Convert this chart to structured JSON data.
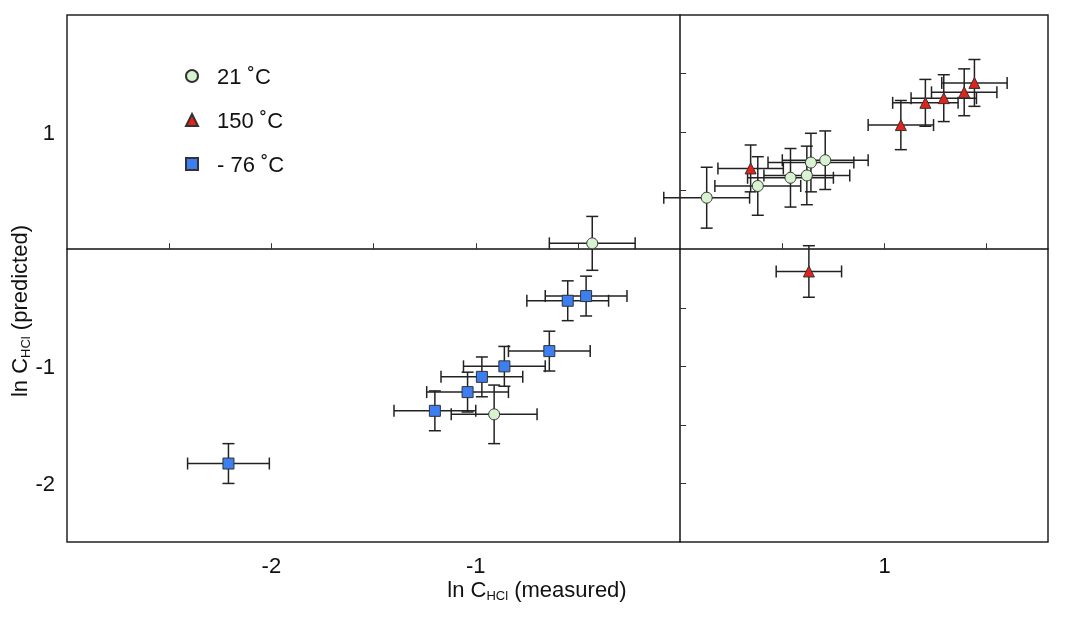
{
  "chart_data": {
    "type": "scatter",
    "xlabel": "ln C$_{HCl}$ (measured)",
    "ylabel": "ln C$_{HCl}$ (predicted)",
    "xlim": [
      -3,
      1.8
    ],
    "ylim": [
      -2.5,
      2
    ],
    "xticks": [
      {
        "value": -2.5,
        "label": null
      },
      -2,
      {
        "value": -1.5,
        "label": null
      },
      -1,
      {
        "value": -0.5,
        "label": null
      },
      {
        "value": 0.5,
        "label": null
      },
      1,
      {
        "value": 1.5,
        "label": null
      }
    ],
    "yticks": [
      -2,
      {
        "value": -1.5,
        "label": null
      },
      -1,
      {
        "value": -0.5,
        "label": null
      },
      {
        "value": 0.5,
        "label": null
      },
      1,
      {
        "value": 1.5,
        "label": null
      }
    ],
    "grid": false,
    "legend": "top left",
    "series": [
      {
        "name": "21 ˚C",
        "marker": "circle",
        "color": "#d8f3cf",
        "x": [
          0.13,
          0.38,
          0.54,
          0.62,
          0.64,
          0.71,
          -0.43,
          -0.91
        ],
        "values": [
          0.44,
          0.54,
          0.61,
          0.63,
          0.74,
          0.76,
          0.05,
          -1.41
        ],
        "xerrors": [
          0.21,
          0.21,
          0.21,
          0.21,
          0.21,
          0.21,
          0.21,
          0.21
        ],
        "errors": [
          0.26,
          0.25,
          0.25,
          0.25,
          0.25,
          0.25,
          0.23,
          0.25
        ]
      },
      {
        "name": "150 ˚C",
        "marker": "triangle",
        "color": "#e0231b",
        "x": [
          0.345,
          0.63,
          1.08,
          1.2,
          1.29,
          1.39,
          1.44
        ],
        "values": [
          0.69,
          -0.19,
          1.06,
          1.25,
          1.29,
          1.34,
          1.42
        ],
        "xerrors": [
          0.16,
          0.16,
          0.16,
          0.16,
          0.16,
          0.16,
          0.16
        ],
        "errors": [
          0.2,
          0.22,
          0.21,
          0.2,
          0.2,
          0.2,
          0.2
        ]
      },
      {
        "name": "- 76 ˚C",
        "marker": "square",
        "color": "#3d7ff0",
        "x": [
          -0.55,
          -0.46,
          -0.64,
          -0.86,
          -0.97,
          -1.04,
          -1.2,
          -2.21
        ],
        "values": [
          -0.44,
          -0.4,
          -0.87,
          -1.0,
          -1.09,
          -1.22,
          -1.38,
          -1.83
        ],
        "xerrors": [
          0.2,
          0.2,
          0.2,
          0.2,
          0.2,
          0.2,
          0.2,
          0.2
        ],
        "errors": [
          0.17,
          0.17,
          0.17,
          0.17,
          0.17,
          0.17,
          0.17,
          0.17
        ]
      }
    ]
  }
}
